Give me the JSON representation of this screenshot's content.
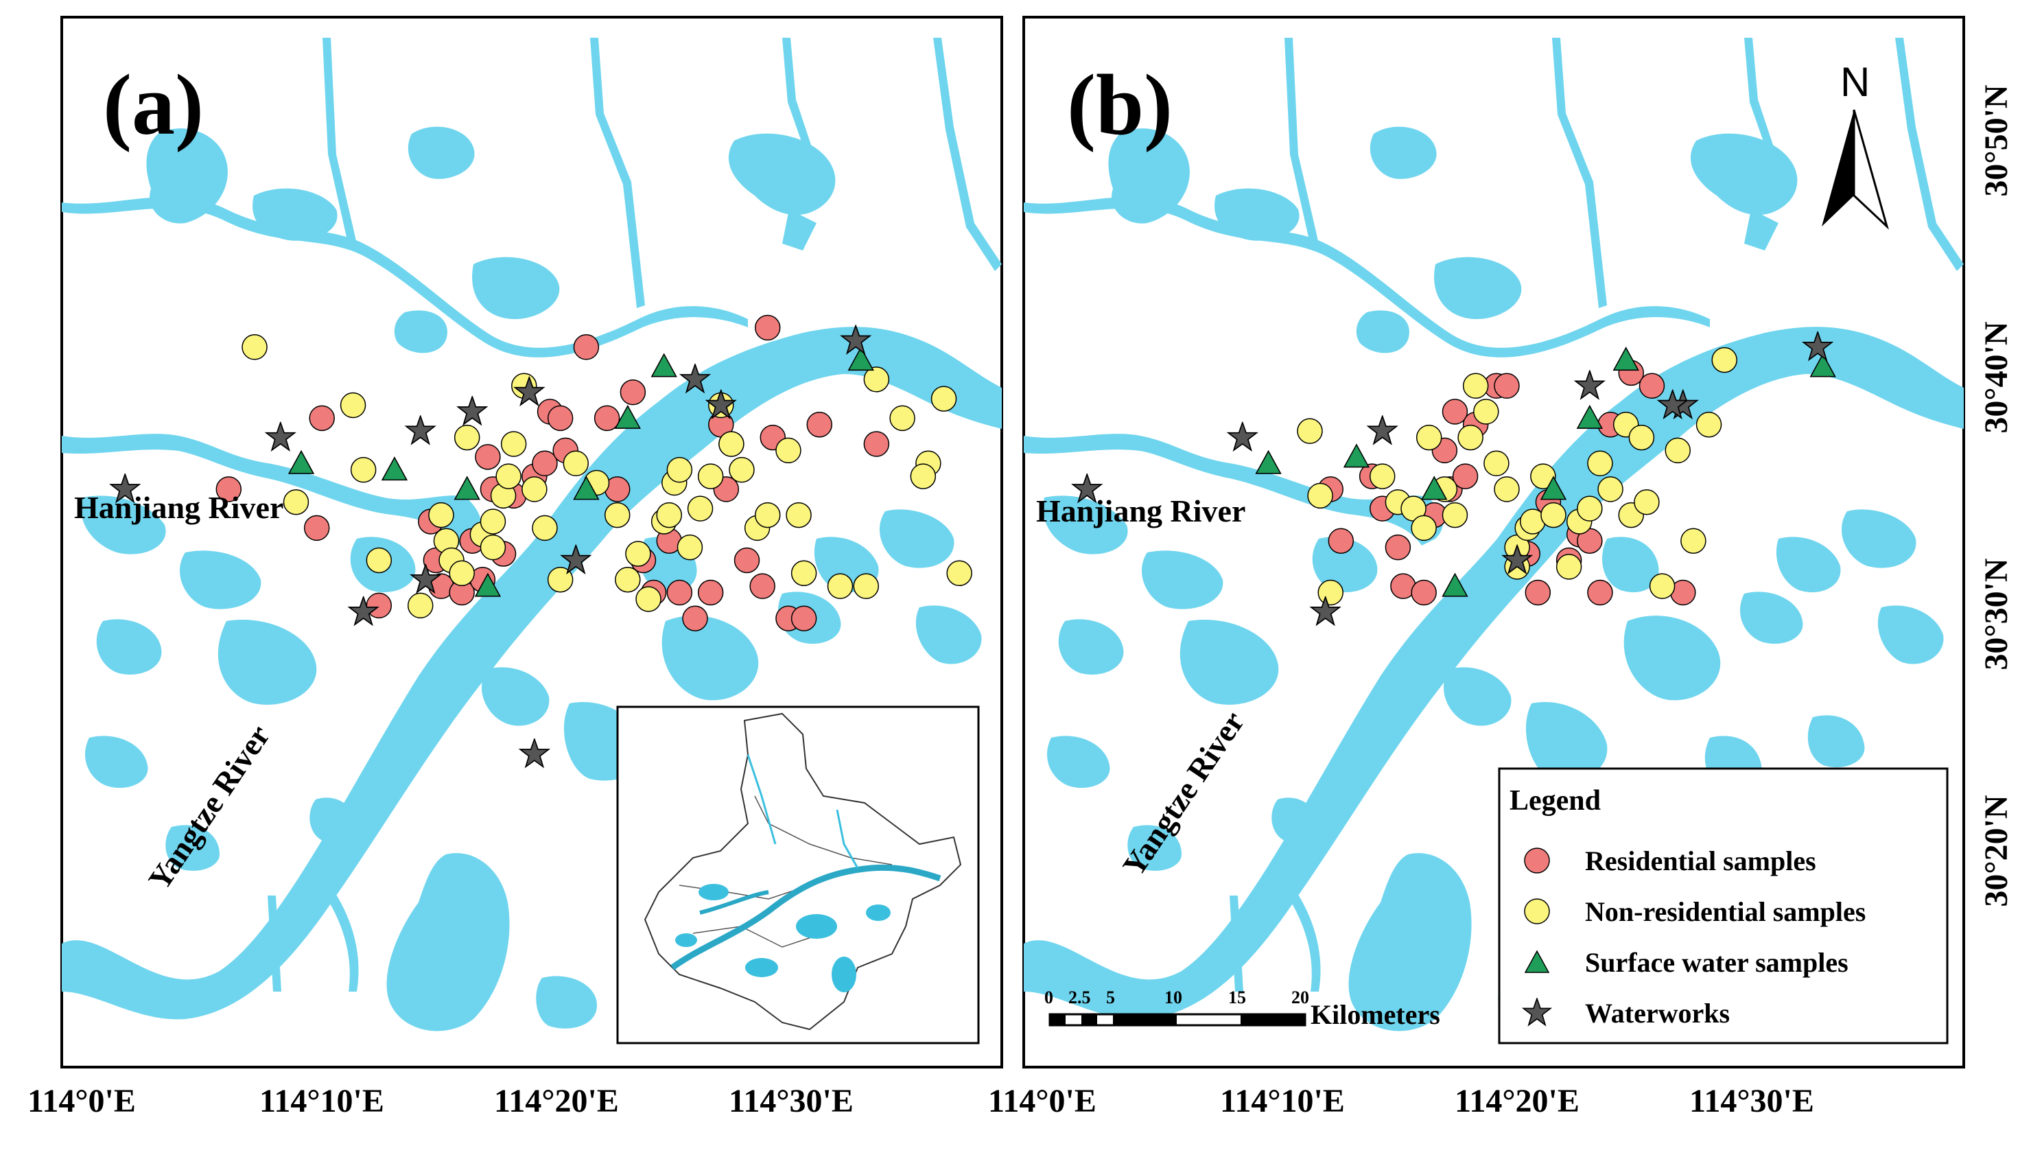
{
  "panels": [
    {
      "label": "(a)"
    },
    {
      "label": "(b)"
    }
  ],
  "rivers": {
    "hanjiang": "Hanjiang River",
    "yangtze": "Yangtze River"
  },
  "longitude_ticks": [
    "114°0'E",
    "114°10'E",
    "114°20'E",
    "114°30'E"
  ],
  "latitude_ticks": [
    "30°50'N",
    "30°40'N",
    "30°30'N",
    "30°20'N"
  ],
  "north_arrow": {
    "label": "N"
  },
  "scale_bar": {
    "numbers": [
      "0",
      "2.5",
      "5",
      "10",
      "15",
      "20"
    ],
    "unit": "Kilometers"
  },
  "legend": {
    "title": "Legend",
    "items": [
      {
        "label": "Residential samples",
        "symbol": "circle",
        "color": "#f07b7b"
      },
      {
        "label": "Non-residential samples",
        "symbol": "circle",
        "color": "#fbf57e"
      },
      {
        "label": "Surface water samples",
        "symbol": "triangle",
        "color": "#1f9e5a"
      },
      {
        "label": "Waterworks",
        "symbol": "star",
        "color": "#555555"
      }
    ]
  },
  "colors": {
    "water": "#6fd5ee",
    "residential": "#f07b7b",
    "non_residential": "#fbf57e",
    "surface_water": "#1f9e5a",
    "waterworks": "#555555"
  }
}
